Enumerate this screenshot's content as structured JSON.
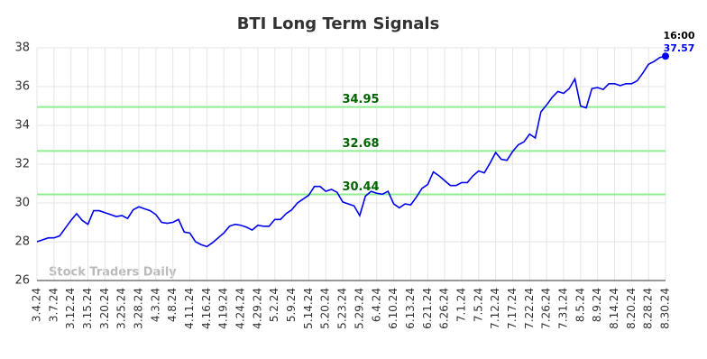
{
  "chart_data": {
    "type": "line",
    "title": "BTI Long Term Signals",
    "watermark": "Stock Traders Daily",
    "annotation": "16:00",
    "categories": [
      "3.4.24",
      null,
      null,
      "3.7.24",
      null,
      null,
      "3.12.24",
      null,
      null,
      "3.15.24",
      null,
      null,
      "3.20.24",
      null,
      null,
      "3.25.24",
      null,
      null,
      "3.28.24",
      null,
      null,
      "4.3.24",
      null,
      null,
      "4.8.24",
      null,
      null,
      "4.11.24",
      null,
      null,
      "4.16.24",
      null,
      null,
      "4.19.24",
      null,
      null,
      "4.24.24",
      null,
      null,
      "4.29.24",
      null,
      null,
      "5.2.24",
      null,
      null,
      "5.9.24",
      null,
      null,
      "5.14.24",
      null,
      null,
      "5.20.24",
      null,
      null,
      "5.23.24",
      null,
      null,
      "5.29.24",
      null,
      null,
      "6.4.24",
      null,
      null,
      "6.10.24",
      null,
      null,
      "6.13.24",
      null,
      null,
      "6.21.24",
      null,
      null,
      "6.26.24",
      null,
      null,
      "7.1.24",
      null,
      null,
      "7.5.24",
      null,
      null,
      "7.12.24",
      null,
      null,
      "7.17.24",
      null,
      null,
      "7.22.24",
      null,
      null,
      "7.26.24",
      null,
      null,
      "7.31.24",
      null,
      null,
      "8.5.24",
      null,
      null,
      "8.9.24",
      null,
      null,
      "8.14.24",
      null,
      null,
      "8.20.24",
      null,
      null,
      "8.28.24",
      null,
      null,
      "8.30.24"
    ],
    "values": [
      28.0,
      28.1,
      28.2,
      28.2,
      28.3,
      28.7,
      29.1,
      29.45,
      29.1,
      28.9,
      29.6,
      29.6,
      29.5,
      29.4,
      29.3,
      29.35,
      29.2,
      29.65,
      29.8,
      29.7,
      29.6,
      29.4,
      29.0,
      28.95,
      29.0,
      29.15,
      28.5,
      28.45,
      28.0,
      27.85,
      27.75,
      27.95,
      28.2,
      28.45,
      28.8,
      28.9,
      28.85,
      28.75,
      28.6,
      28.85,
      28.8,
      28.8,
      29.15,
      29.15,
      29.45,
      29.65,
      30.0,
      30.2,
      30.4,
      30.85,
      30.85,
      30.6,
      30.7,
      30.55,
      30.05,
      29.95,
      29.85,
      29.35,
      30.35,
      30.6,
      30.5,
      30.45,
      30.6,
      29.95,
      29.75,
      29.95,
      29.9,
      30.3,
      30.75,
      30.95,
      31.6,
      31.4,
      31.15,
      30.9,
      30.9,
      31.05,
      31.05,
      31.4,
      31.65,
      31.55,
      32.05,
      32.6,
      32.25,
      32.2,
      32.65,
      33.0,
      33.15,
      33.55,
      33.35,
      34.7,
      35.05,
      35.45,
      35.75,
      35.65,
      35.9,
      36.4,
      35.0,
      34.9,
      35.9,
      35.95,
      35.85,
      36.15,
      36.15,
      36.05,
      36.15,
      36.15,
      36.3,
      36.7,
      37.15,
      37.3,
      37.5,
      37.57
    ],
    "color": "#0000ee",
    "levels": [
      34.95,
      32.68,
      30.44
    ],
    "level_color": "#90ee90",
    "level_label_color": "#006400",
    "ylim": [
      26,
      38
    ],
    "yticks": [
      26,
      28,
      30,
      32,
      34,
      36,
      38
    ],
    "grid": true
  }
}
